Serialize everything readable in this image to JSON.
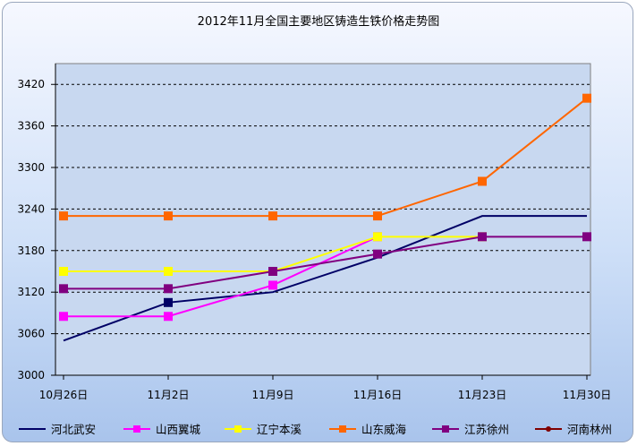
{
  "chart_data": {
    "type": "line",
    "title": "2012年11月全国主要地区铸造生铁价格走势图",
    "xlabel": "",
    "ylabel": "",
    "categories": [
      "10月26日",
      "11月2日",
      "11月9日",
      "11月16日",
      "11月23日",
      "11月30日"
    ],
    "ylim": [
      3000,
      3450
    ],
    "yticks": [
      3000,
      3060,
      3120,
      3180,
      3240,
      3300,
      3360,
      3420
    ],
    "grid": "horizontal dashed",
    "legend_position": "bottom",
    "series": [
      {
        "name": "河北武安",
        "values": [
          3050,
          3105,
          3120,
          3170,
          3230,
          3230
        ],
        "color": "#000066",
        "marker": "square-on-2nd-only"
      },
      {
        "name": "山西翼城",
        "values": [
          3085,
          3085,
          3130,
          3200,
          null,
          null
        ],
        "color": "#ff00ff",
        "marker": "square"
      },
      {
        "name": "辽宁本溪",
        "values": [
          3150,
          3150,
          3150,
          3200,
          3200,
          null
        ],
        "color": "#ffff00",
        "marker": "square"
      },
      {
        "name": "山东威海",
        "values": [
          3230,
          3230,
          3230,
          3230,
          3280,
          3400
        ],
        "color": "#ff6600",
        "marker": "square"
      },
      {
        "name": "江苏徐州",
        "values": [
          3125,
          3125,
          3150,
          3175,
          3200,
          3200
        ],
        "color": "#800080",
        "marker": "square"
      },
      {
        "name": "河南林州",
        "values": [
          null,
          null,
          null,
          null,
          null,
          null
        ],
        "color": "#800000",
        "marker": "circle"
      }
    ]
  }
}
